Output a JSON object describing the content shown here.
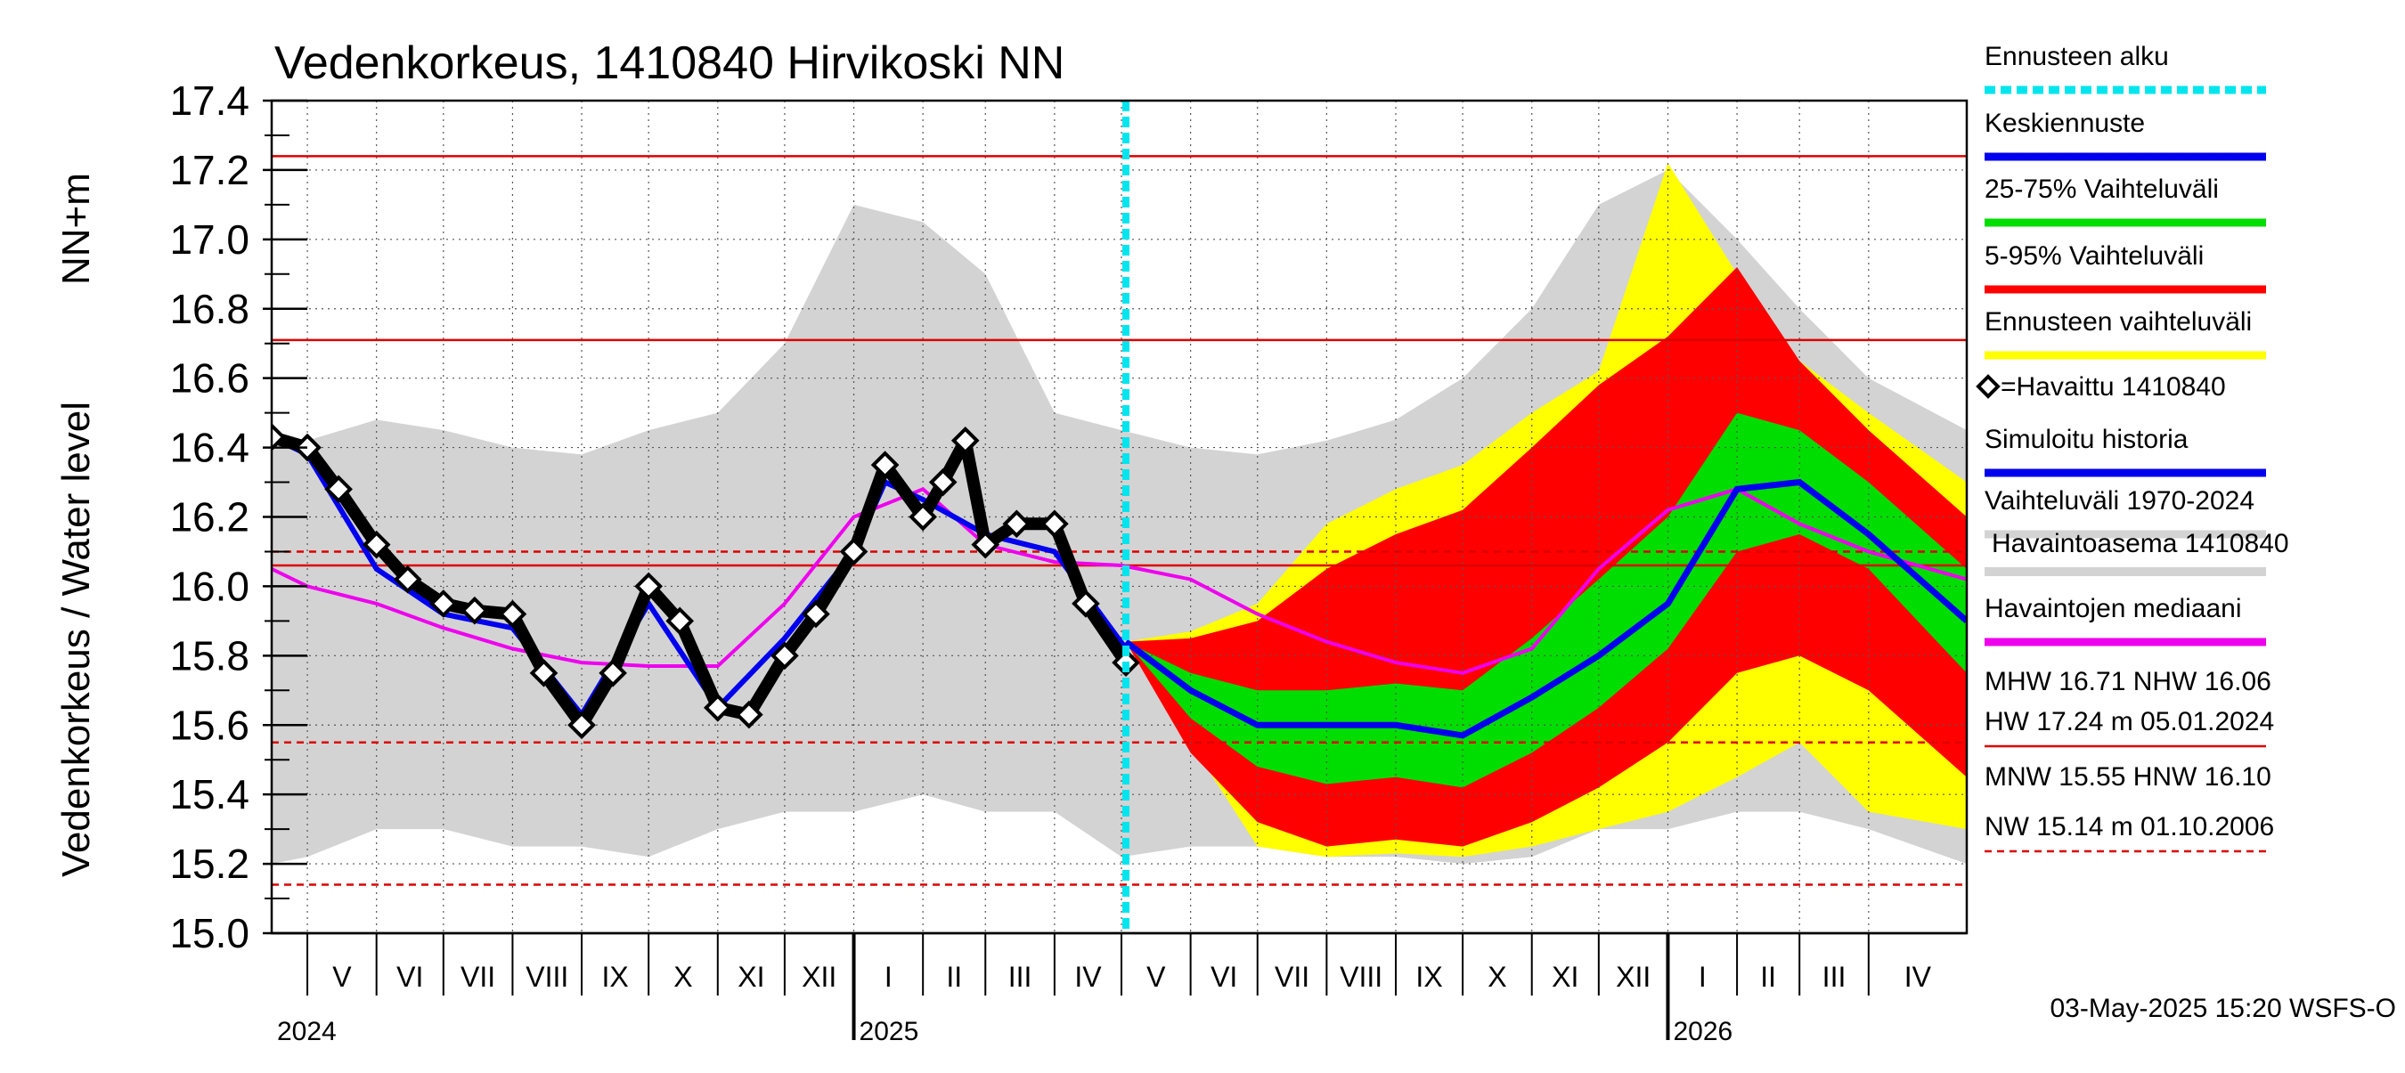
{
  "chart_data": {
    "type": "line",
    "title": "Vedenkorkeus, 1410840 Hirvikoski NN",
    "ylabel_upper": "NN+m",
    "ylabel": "Vedenkorkeus / Water level",
    "ylim": [
      15.0,
      17.4
    ],
    "yticks": [
      "15.0",
      "15.2",
      "15.4",
      "15.6",
      "15.8",
      "16.0",
      "16.2",
      "16.4",
      "16.6",
      "16.8",
      "17.0",
      "17.2",
      "17.4"
    ],
    "x_start": "2024-04-15",
    "x_end": "2026-05-15",
    "forecast_start": "2025-05-03",
    "months": [
      {
        "label": "V",
        "date": "2024-05-01"
      },
      {
        "label": "VI",
        "date": "2024-06-01"
      },
      {
        "label": "VII",
        "date": "2024-07-01"
      },
      {
        "label": "VIII",
        "date": "2024-08-01"
      },
      {
        "label": "IX",
        "date": "2024-09-01"
      },
      {
        "label": "X",
        "date": "2024-10-01"
      },
      {
        "label": "XI",
        "date": "2024-11-01"
      },
      {
        "label": "XII",
        "date": "2024-12-01"
      },
      {
        "label": "I",
        "date": "2025-01-01"
      },
      {
        "label": "II",
        "date": "2025-02-01"
      },
      {
        "label": "III",
        "date": "2025-03-01"
      },
      {
        "label": "IV",
        "date": "2025-04-01"
      },
      {
        "label": "V",
        "date": "2025-05-01"
      },
      {
        "label": "VI",
        "date": "2025-06-01"
      },
      {
        "label": "VII",
        "date": "2025-07-01"
      },
      {
        "label": "VIII",
        "date": "2025-08-01"
      },
      {
        "label": "IX",
        "date": "2025-09-01"
      },
      {
        "label": "X",
        "date": "2025-10-01"
      },
      {
        "label": "XI",
        "date": "2025-11-01"
      },
      {
        "label": "XII",
        "date": "2025-12-01"
      },
      {
        "label": "I",
        "date": "2026-01-01"
      },
      {
        "label": "II",
        "date": "2026-02-01"
      },
      {
        "label": "III",
        "date": "2026-03-01"
      },
      {
        "label": "IV",
        "date": "2026-04-01"
      }
    ],
    "years": [
      {
        "label": "2024",
        "date": "2024-04-15"
      },
      {
        "label": "2025",
        "date": "2025-01-01"
      },
      {
        "label": "2026",
        "date": "2026-01-01"
      }
    ],
    "reference_lines": [
      {
        "name": "HW",
        "value": 17.24,
        "style": "solid"
      },
      {
        "name": "MHW",
        "value": 16.71,
        "style": "solid"
      },
      {
        "name": "HNW",
        "value": 16.1,
        "style": "dashed"
      },
      {
        "name": "NHW",
        "value": 16.06,
        "style": "solid"
      },
      {
        "name": "MNW",
        "value": 15.55,
        "style": "dashed"
      },
      {
        "name": "NW",
        "value": 15.14,
        "style": "dashed"
      }
    ],
    "history_band": {
      "name": "Vaihteluväli 1970-2024",
      "x": [
        "2024-04-15",
        "2024-05-01",
        "2024-06-01",
        "2024-07-01",
        "2024-08-01",
        "2024-09-01",
        "2024-10-01",
        "2024-11-01",
        "2024-12-01",
        "2025-01-01",
        "2025-02-01",
        "2025-03-01",
        "2025-04-01",
        "2025-05-01",
        "2025-06-01",
        "2025-07-01",
        "2025-08-01",
        "2025-09-01",
        "2025-10-01",
        "2025-11-01",
        "2025-12-01",
        "2026-01-01",
        "2026-02-01",
        "2026-03-01",
        "2026-04-01",
        "2026-05-15"
      ],
      "low": [
        15.2,
        15.22,
        15.3,
        15.3,
        15.25,
        15.25,
        15.22,
        15.3,
        15.35,
        15.35,
        15.4,
        15.35,
        15.35,
        15.22,
        15.25,
        15.25,
        15.22,
        15.22,
        15.2,
        15.22,
        15.3,
        15.3,
        15.35,
        15.35,
        15.3,
        15.2
      ],
      "high": [
        16.4,
        16.42,
        16.48,
        16.45,
        16.4,
        16.38,
        16.45,
        16.5,
        16.7,
        17.1,
        17.05,
        16.9,
        16.5,
        16.45,
        16.4,
        16.38,
        16.42,
        16.48,
        16.6,
        16.8,
        17.1,
        17.2,
        17.0,
        16.8,
        16.6,
        16.45
      ]
    },
    "median": {
      "name": "Havaintojen mediaani",
      "x": [
        "2024-04-15",
        "2024-05-01",
        "2024-06-01",
        "2024-07-01",
        "2024-08-01",
        "2024-09-01",
        "2024-10-01",
        "2024-11-01",
        "2024-12-01",
        "2025-01-01",
        "2025-02-01",
        "2025-03-01",
        "2025-04-01",
        "2025-05-01",
        "2025-06-01",
        "2025-07-01",
        "2025-08-01",
        "2025-09-01",
        "2025-10-01",
        "2025-11-01",
        "2025-12-01",
        "2026-01-01",
        "2026-02-01",
        "2026-03-01",
        "2026-04-01",
        "2026-05-15"
      ],
      "values": [
        16.05,
        16.0,
        15.95,
        15.88,
        15.82,
        15.78,
        15.77,
        15.77,
        15.95,
        16.2,
        16.28,
        16.12,
        16.07,
        16.06,
        16.02,
        15.92,
        15.84,
        15.78,
        15.75,
        15.82,
        16.05,
        16.22,
        16.28,
        16.18,
        16.1,
        16.02
      ]
    },
    "observed": {
      "name": "=Havaittu 1410840",
      "x": [
        "2024-04-15",
        "2024-05-01",
        "2024-05-15",
        "2024-06-01",
        "2024-06-15",
        "2024-07-01",
        "2024-07-15",
        "2024-08-01",
        "2024-08-15",
        "2024-09-01",
        "2024-09-15",
        "2024-10-01",
        "2024-10-15",
        "2024-11-01",
        "2024-11-15",
        "2024-12-01",
        "2024-12-15",
        "2025-01-01",
        "2025-01-15",
        "2025-02-01",
        "2025-02-10",
        "2025-02-20",
        "2025-03-01",
        "2025-03-15",
        "2025-04-01",
        "2025-04-15",
        "2025-05-03"
      ],
      "values": [
        16.43,
        16.4,
        16.28,
        16.12,
        16.02,
        15.95,
        15.93,
        15.92,
        15.75,
        15.6,
        15.75,
        16.0,
        15.9,
        15.65,
        15.63,
        15.8,
        15.92,
        16.1,
        16.35,
        16.2,
        16.3,
        16.42,
        16.12,
        16.18,
        16.18,
        15.95,
        15.78
      ]
    },
    "forecast": {
      "x": [
        "2025-05-03",
        "2025-06-01",
        "2025-07-01",
        "2025-08-01",
        "2025-09-01",
        "2025-10-01",
        "2025-11-01",
        "2025-12-01",
        "2026-01-01",
        "2026-02-01",
        "2026-03-01",
        "2026-04-01",
        "2026-05-15"
      ],
      "median": [
        15.84,
        15.7,
        15.6,
        15.6,
        15.6,
        15.57,
        15.68,
        15.8,
        15.95,
        16.28,
        16.3,
        16.15,
        15.9
      ],
      "p25": [
        15.84,
        15.62,
        15.48,
        15.43,
        15.45,
        15.42,
        15.52,
        15.65,
        15.82,
        16.1,
        16.15,
        16.05,
        15.75
      ],
      "p75": [
        15.84,
        15.75,
        15.7,
        15.7,
        15.72,
        15.7,
        15.85,
        16.02,
        16.2,
        16.5,
        16.45,
        16.3,
        16.05
      ],
      "p5": [
        15.84,
        15.52,
        15.32,
        15.25,
        15.27,
        15.25,
        15.32,
        15.42,
        15.55,
        15.75,
        15.8,
        15.7,
        15.45
      ],
      "p95": [
        15.84,
        15.85,
        15.9,
        16.05,
        16.15,
        16.22,
        16.4,
        16.58,
        16.72,
        16.92,
        16.65,
        16.45,
        16.2
      ],
      "min": [
        15.84,
        15.55,
        15.25,
        15.22,
        15.23,
        15.22,
        15.25,
        15.3,
        15.35,
        15.45,
        15.55,
        15.35,
        15.3
      ],
      "max": [
        15.84,
        15.87,
        15.95,
        16.18,
        16.28,
        16.35,
        16.5,
        16.62,
        17.22,
        16.9,
        16.65,
        16.5,
        16.3
      ]
    },
    "simulated": {
      "x": [
        "2024-04-15",
        "2024-05-01",
        "2024-06-01",
        "2024-07-01",
        "2024-08-01",
        "2024-09-01",
        "2024-10-01",
        "2024-11-01",
        "2024-12-01",
        "2025-01-01",
        "2025-01-15",
        "2025-02-01",
        "2025-03-01",
        "2025-04-01",
        "2025-05-03"
      ],
      "values": [
        16.43,
        16.38,
        16.05,
        15.92,
        15.88,
        15.63,
        15.95,
        15.65,
        15.85,
        16.1,
        16.3,
        16.25,
        16.15,
        16.1,
        15.82
      ]
    },
    "legend": [
      {
        "label": "Ennusteen alku",
        "color": "#00e5ee",
        "style": "dashed"
      },
      {
        "label": "Keskiennuste",
        "color": "#0000ee",
        "style": "solid"
      },
      {
        "label": "25-75% Vaihteluväli",
        "color": "#00dd00",
        "style": "solid"
      },
      {
        "label": "5-95% Vaihteluväli",
        "color": "#ff0000",
        "style": "solid"
      },
      {
        "label": "Ennusteen vaihteluväli",
        "color": "#ffff00",
        "style": "solid"
      },
      {
        "label": "=Havaittu 1410840",
        "color": "#000000",
        "style": "marker"
      },
      {
        "label": "Simuloitu historia",
        "color": "#0000ee",
        "style": "solid"
      },
      {
        "label": "Vaihteluväli 1970-2024",
        "color": "#d3d3d3",
        "style": "solid"
      },
      {
        "label": "Havaintoasema 1410840",
        "color": "#d3d3d3",
        "style": "text"
      },
      {
        "label": "Havaintojen mediaani",
        "color": "#ee00ee",
        "style": "solid"
      }
    ],
    "stats": [
      {
        "text": "MHW  16.71 NHW  16.06"
      },
      {
        "text": "HW  17.24 m 05.01.2024",
        "line": "solid"
      },
      {
        "text": "MNW  15.55 HNW  16.10"
      },
      {
        "text": "NW  15.14 m 01.10.2006",
        "line": "dashed"
      }
    ],
    "footer": "03-May-2025 15:20 WSFS-O",
    "colors": {
      "grey": "#d3d3d3",
      "yellow": "#ffff00",
      "red": "#ff0000",
      "green": "#00dd00",
      "blue": "#0000ee",
      "magenta": "#ee00ee",
      "cyan": "#00e5ee",
      "refline": "#dd0000"
    }
  }
}
